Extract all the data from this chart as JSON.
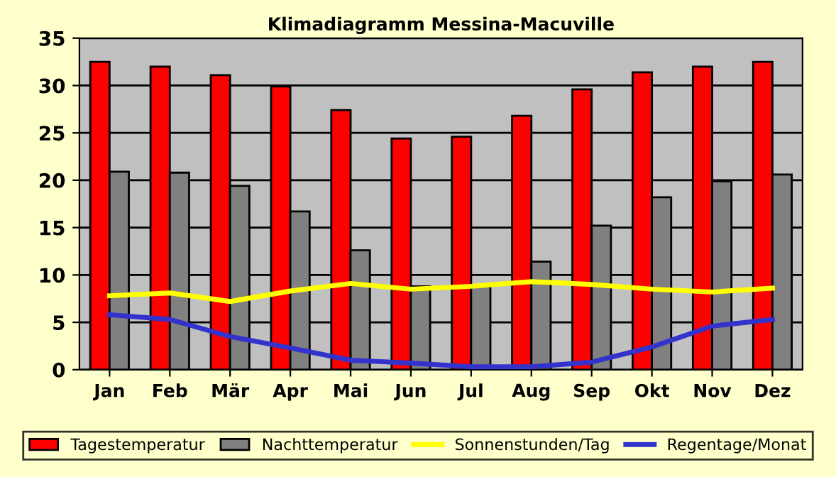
{
  "chart_data": {
    "type": "bar",
    "title": "Klimadiagramm Messina-Macuville",
    "categories": [
      "Jan",
      "Feb",
      "Mär",
      "Apr",
      "Mai",
      "Jun",
      "Jul",
      "Aug",
      "Sep",
      "Okt",
      "Nov",
      "Dez"
    ],
    "series": [
      {
        "name": "Tagestemperatur",
        "color": "#ff0000",
        "values": [
          32.5,
          32.0,
          31.1,
          29.9,
          27.4,
          24.4,
          24.6,
          26.8,
          29.6,
          31.4,
          32.0,
          32.5
        ]
      },
      {
        "name": "Nachttemperatur",
        "color": "#808080",
        "values": [
          20.9,
          20.8,
          19.4,
          16.7,
          12.6,
          8.8,
          8.8,
          11.4,
          15.2,
          18.2,
          19.9,
          20.6
        ]
      },
      {
        "name": "Sonnenstunden/Tag",
        "type": "line",
        "color": "#ffff00",
        "values": [
          7.8,
          8.1,
          7.2,
          8.3,
          9.1,
          8.5,
          8.8,
          9.3,
          9.0,
          8.5,
          8.2,
          8.6
        ]
      },
      {
        "name": "Regentage/Monat",
        "type": "line",
        "color": "#3333cc",
        "values": [
          5.8,
          5.3,
          3.5,
          2.3,
          1.0,
          0.7,
          0.3,
          0.3,
          0.8,
          2.4,
          4.6,
          5.3
        ]
      }
    ],
    "ylim": [
      0,
      35
    ],
    "yticks": [
      0,
      5,
      10,
      15,
      20,
      25,
      30,
      35
    ],
    "grid": "y",
    "legend": "bottom"
  }
}
